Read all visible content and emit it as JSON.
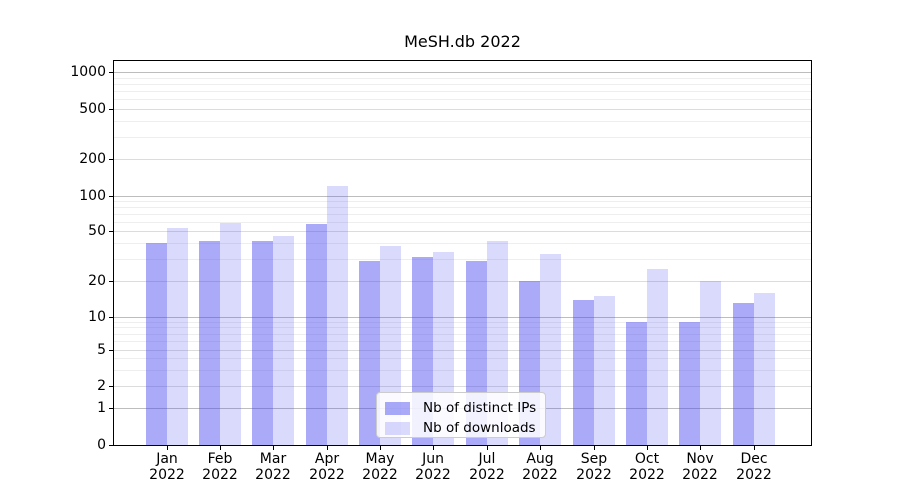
{
  "figure": {
    "background": "#ffffff"
  },
  "chart_data": {
    "type": "bar",
    "title": "MeSH.db 2022",
    "categories": [
      "Jan 2022",
      "Feb 2022",
      "Mar 2022",
      "Apr 2022",
      "May 2022",
      "Jun 2022",
      "Jul 2022",
      "Aug 2022",
      "Sep 2022",
      "Oct 2022",
      "Nov 2022",
      "Dec 2022"
    ],
    "category_month": [
      "Jan",
      "Feb",
      "Mar",
      "Apr",
      "May",
      "Jun",
      "Jul",
      "Aug",
      "Sep",
      "Oct",
      "Nov",
      "Dec"
    ],
    "category_year": [
      "2022",
      "2022",
      "2022",
      "2022",
      "2022",
      "2022",
      "2022",
      "2022",
      "2022",
      "2022",
      "2022",
      "2022"
    ],
    "series": [
      {
        "name": "Nb of distinct IPs",
        "color_rgba": "rgba(70,70,240,0.46)",
        "approx_hex": "#aaaaf4",
        "values": [
          40,
          42,
          42,
          58,
          29,
          31,
          29,
          20,
          14,
          9,
          9,
          13
        ]
      },
      {
        "name": "Nb of downloads",
        "color_rgba": "rgba(70,70,240,0.20)",
        "approx_hex": "#dadaf8",
        "values": [
          53,
          59,
          46,
          120,
          38,
          34,
          42,
          33,
          15,
          25,
          20,
          16
        ]
      }
    ],
    "xlabel": "",
    "ylabel": "",
    "yscale": "log-with-zero-baseline",
    "yticks": [
      0,
      1,
      2,
      5,
      10,
      20,
      50,
      100,
      200,
      500,
      1000
    ],
    "major_yticks": [
      1,
      10,
      100,
      1000
    ],
    "ylim": [
      0,
      1250
    ],
    "grid": "horizontal major + minor",
    "legend_position": "lower center inside axes"
  },
  "colors": {
    "spine": "#000000",
    "grid_major": "#bdbdbd",
    "grid_labeled": "#dcdcdc",
    "grid_minor": "#eeeeee",
    "text": "#000000"
  }
}
